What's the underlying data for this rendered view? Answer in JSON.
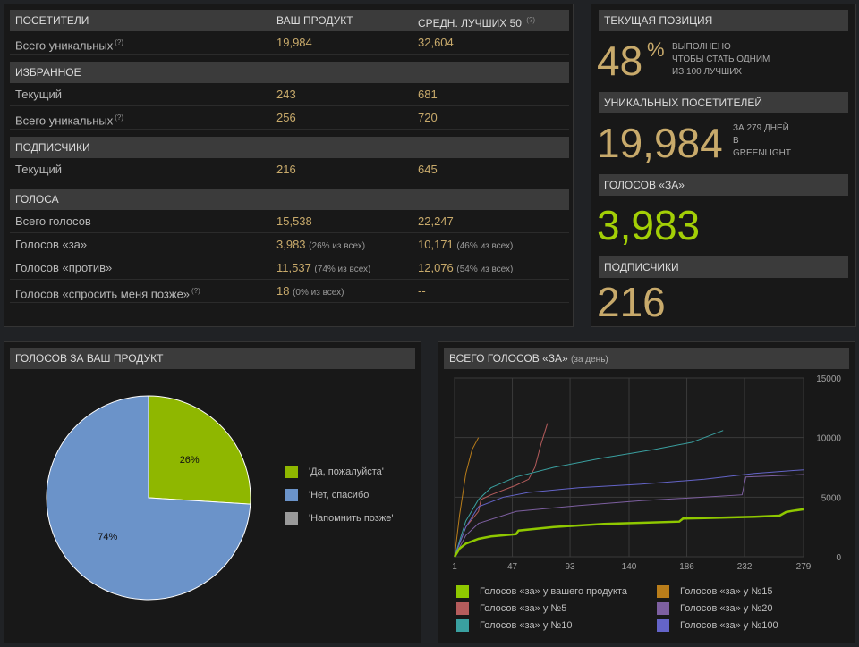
{
  "stats": {
    "header": {
      "label": "ПОСЕТИТЕЛИ",
      "col1": "ВАШ ПРОДУКТ",
      "col2": "СРЕДН. ЛУЧШИХ 50",
      "q": "(?)"
    },
    "visitors_total": {
      "label": "Всего уникальных",
      "q": "(?)",
      "v1": "19,984",
      "v2": "32,604"
    },
    "favorites_header": "ИЗБРАННОЕ",
    "fav_current": {
      "label": "Текущий",
      "v1": "243",
      "v2": "681"
    },
    "fav_total": {
      "label": "Всего уникальных",
      "q": "(?)",
      "v1": "256",
      "v2": "720"
    },
    "subs_header": "ПОДПИСЧИКИ",
    "subs_current": {
      "label": "Текущий",
      "v1": "216",
      "v2": "645"
    },
    "votes_header": "ГОЛОСА",
    "votes_total": {
      "label": "Всего голосов",
      "v1": "15,538",
      "v2": "22,247"
    },
    "votes_yes": {
      "label": "Голосов «за»",
      "v1": "3,983",
      "v1s": "(26% из всех)",
      "v2": "10,171",
      "v2s": "(46% из всех)"
    },
    "votes_no": {
      "label": "Голосов «против»",
      "v1": "11,537",
      "v1s": "(74% из всех)",
      "v2": "12,076",
      "v2s": "(54% из всех)"
    },
    "votes_later": {
      "label": "Голосов «спросить меня позже»",
      "q": "(?)",
      "v1": "18",
      "v1s": "(0% из всех)",
      "v2": "--"
    }
  },
  "summary": {
    "position_header": "ТЕКУЩАЯ ПОЗИЦИЯ",
    "position_value": "48",
    "position_pct": "%",
    "position_desc": [
      "ВЫПОЛНЕНО",
      "ЧТОБЫ СТАТЬ ОДНИМ",
      "ИЗ 100 ЛУЧШИХ"
    ],
    "uniq_header": "УНИКАЛЬНЫХ ПОСЕТИТЕЛЕЙ",
    "uniq_value": "19,984",
    "uniq_desc": [
      "ЗА 279 ДНЕЙ",
      "В",
      "GREENLIGHT"
    ],
    "yes_header": "ГОЛОСОВ «ЗА»",
    "yes_value": "3,983",
    "subs_header": "ПОДПИСЧИКИ",
    "subs_value": "216"
  },
  "pie": {
    "header": "ГОЛОСОВ ЗА ВАШ ПРОДУКТ",
    "legend": [
      "'Да, пожалуйста'",
      "'Нет, спасибо'",
      "'Напомнить позже'"
    ],
    "colors": [
      "#8fb700",
      "#6b93c9",
      "#9a9a9a"
    ],
    "labels": [
      "26%",
      "74%"
    ]
  },
  "line_chart": {
    "header": "ВСЕГО ГОЛОСОВ «ЗА»",
    "header_small": "(за день)",
    "legend": [
      {
        "label": "Голосов «за» у вашего продукта",
        "color": "#8fc800"
      },
      {
        "label": "Голосов «за» у №15",
        "color": "#b97d1a"
      },
      {
        "label": "Голосов «за» у №5",
        "color": "#b55c5c"
      },
      {
        "label": "Голосов «за» у №20",
        "color": "#7d5fa0"
      },
      {
        "label": "Голосов «за» у №10",
        "color": "#3aa0a0"
      },
      {
        "label": "Голосов «за» у №100",
        "color": "#6464c8"
      }
    ]
  },
  "chart_data": [
    {
      "type": "pie",
      "title": "ГОЛОСОВ ЗА ВАШ ПРОДУКТ",
      "categories": [
        "'Да, пожалуйста'",
        "'Нет, спасибо'",
        "'Напомнить позже'"
      ],
      "values": [
        26,
        74,
        0
      ],
      "legend": "right"
    },
    {
      "type": "line",
      "title": "ВСЕГО ГОЛОСОВ «ЗА» (за день)",
      "x_ticks": [
        1,
        47,
        93,
        140,
        186,
        232,
        279
      ],
      "y_ticks": [
        0,
        5000,
        10000,
        15000
      ],
      "xlim": [
        1,
        279
      ],
      "ylim": [
        0,
        15000
      ],
      "grid": true,
      "legend": "bottom",
      "series": [
        {
          "name": "Голосов «за» у вашего продукта",
          "color": "#8fc800",
          "x": [
            1,
            5,
            10,
            20,
            30,
            50,
            52,
            80,
            120,
            150,
            180,
            183,
            200,
            240,
            260,
            265,
            270,
            279
          ],
          "y": [
            0,
            700,
            1100,
            1500,
            1700,
            1900,
            2200,
            2500,
            2750,
            2850,
            2950,
            3200,
            3250,
            3350,
            3450,
            3750,
            3850,
            3983
          ]
        },
        {
          "name": "Голосов «за» у №15",
          "color": "#b97d1a",
          "x": [
            1,
            5,
            10,
            15,
            20
          ],
          "y": [
            0,
            3500,
            7000,
            9000,
            10000
          ]
        },
        {
          "name": "Голосов «за» у №5",
          "color": "#b55c5c",
          "x": [
            1,
            10,
            20,
            22,
            30,
            50,
            60,
            65,
            70,
            75
          ],
          "y": [
            0,
            2500,
            3800,
            4800,
            5200,
            6000,
            6500,
            7500,
            9500,
            11200
          ]
        },
        {
          "name": "Голосов «за» у №20",
          "color": "#7d5fa0",
          "x": [
            1,
            10,
            20,
            50,
            100,
            150,
            200,
            230,
            233,
            279
          ],
          "y": [
            0,
            1800,
            2800,
            3800,
            4300,
            4700,
            5000,
            5200,
            6700,
            6900
          ]
        },
        {
          "name": "Голосов «за» у №10",
          "color": "#3aa0a0",
          "x": [
            1,
            10,
            20,
            30,
            50,
            80,
            120,
            160,
            190,
            200,
            215
          ],
          "y": [
            0,
            3000,
            4800,
            5800,
            6700,
            7500,
            8300,
            9000,
            9600,
            10000,
            10600
          ]
        },
        {
          "name": "Голосов «за» у №100",
          "color": "#6464c8",
          "x": [
            1,
            10,
            20,
            40,
            60,
            100,
            150,
            200,
            240,
            279
          ],
          "y": [
            0,
            2500,
            4200,
            5000,
            5400,
            5800,
            6100,
            6500,
            7000,
            7300
          ]
        }
      ]
    }
  ]
}
